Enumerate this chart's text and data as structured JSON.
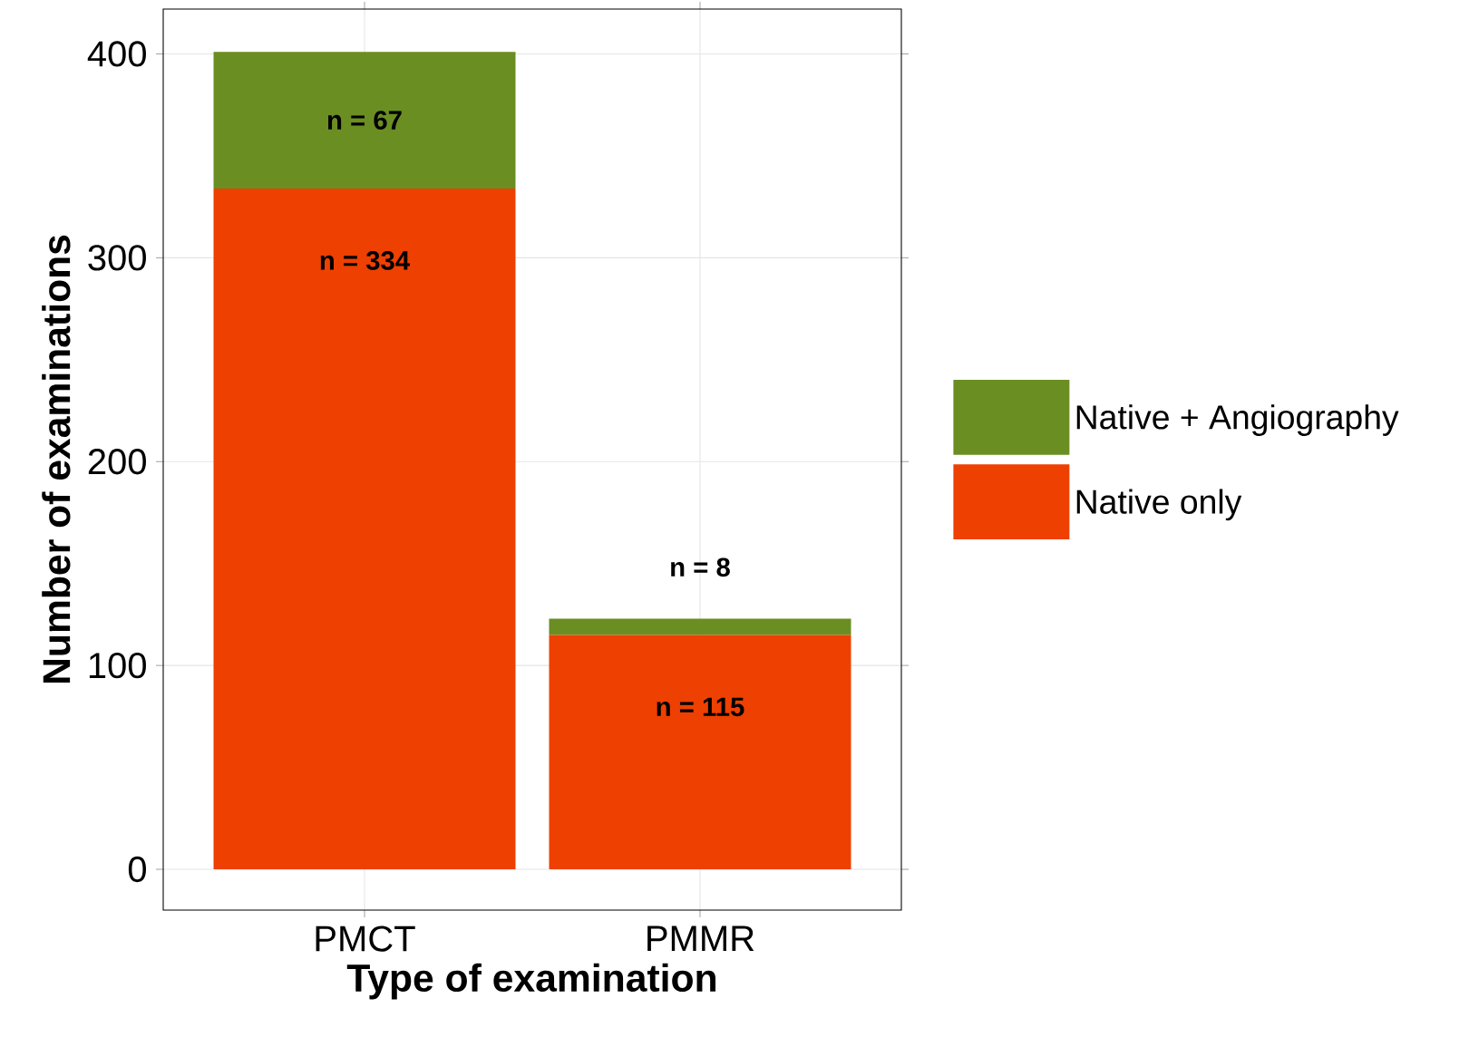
{
  "chart_data": {
    "type": "bar",
    "stacked": true,
    "xlabel": "Type of examination",
    "ylabel": "Number of examinations",
    "categories": [
      "PMCT",
      "PMMR"
    ],
    "series": [
      {
        "name": "Native only",
        "color": "#ee4000",
        "values": [
          334,
          115
        ],
        "value_labels": [
          "n = 334",
          "n = 115"
        ]
      },
      {
        "name": "Native + Angiography",
        "color": "#6b8e23",
        "values": [
          67,
          8
        ],
        "value_labels": [
          "n = 67",
          "n = 8"
        ]
      }
    ],
    "ylim": [
      -20,
      422
    ],
    "yticks": [
      0,
      100,
      200,
      300,
      400
    ],
    "grid": true,
    "legend": "right"
  }
}
